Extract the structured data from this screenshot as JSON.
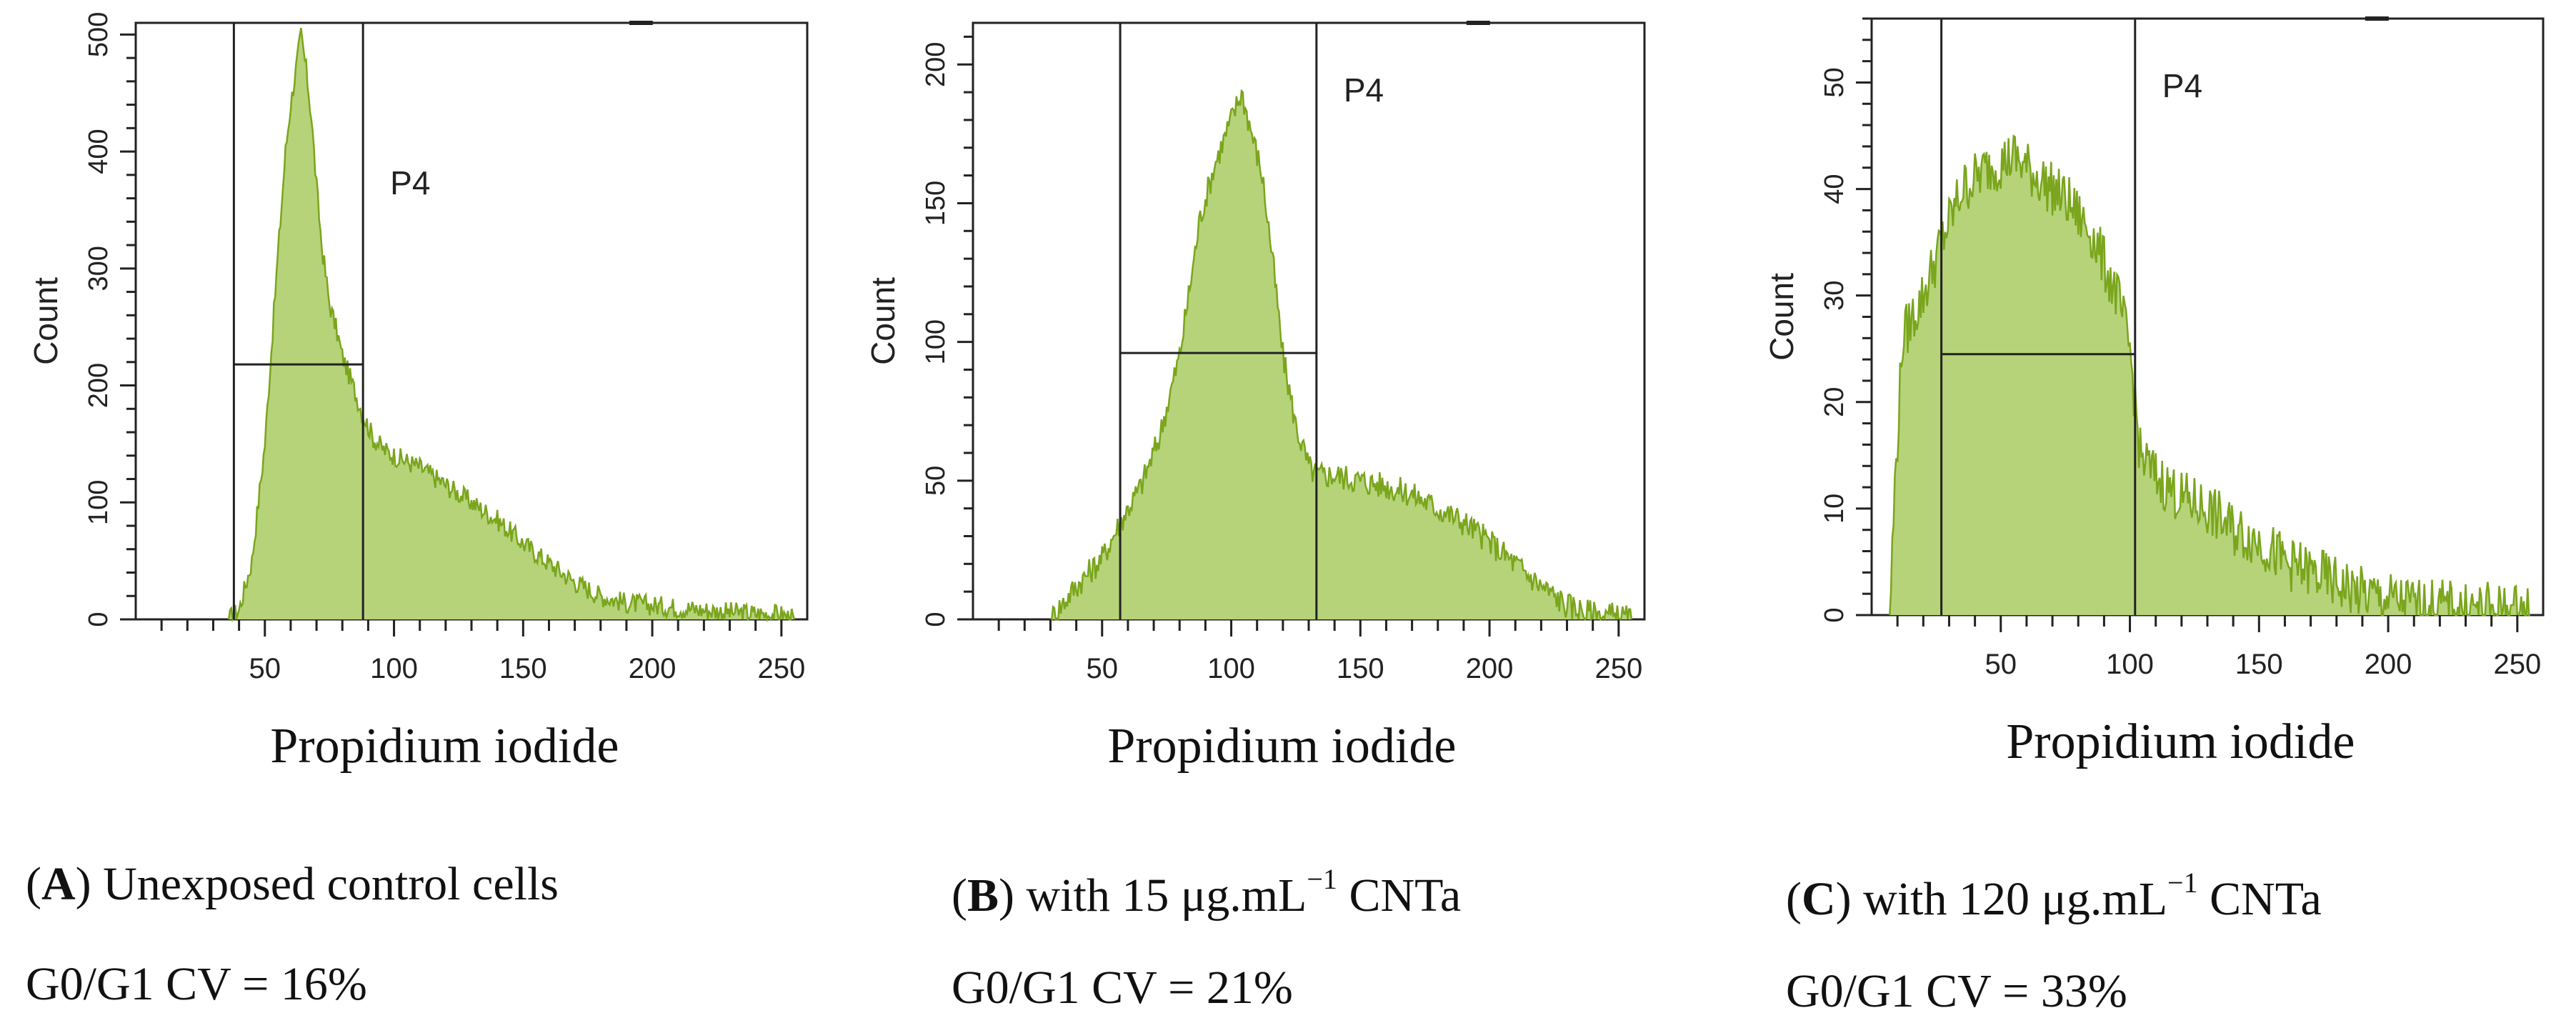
{
  "chart_data": [
    {
      "type": "histogram",
      "panel_letter": "A",
      "caption_text": " Unexposed control cells",
      "cv_text": "G0/G1 CV = 16%",
      "xlabel": "Propidium iodide",
      "ylabel": "Count",
      "gate_label": "P4",
      "xlim": [
        0,
        260
      ],
      "ylim": [
        0,
        510
      ],
      "xticks": [
        50,
        100,
        150,
        200,
        250
      ],
      "yticks": [
        0,
        100,
        200,
        300,
        400,
        500
      ],
      "gate": {
        "x_start": 38,
        "x_end": 88,
        "marker_y": 218
      },
      "fill_color": "#b6d37a",
      "line_color": "#7aa51c",
      "profile_x": [
        36,
        40,
        45,
        50,
        55,
        58,
        60,
        62,
        64,
        66,
        68,
        70,
        72,
        75,
        78,
        80,
        84,
        88,
        92,
        96,
        100,
        110,
        120,
        130,
        140,
        150,
        160,
        170,
        180,
        190,
        200,
        210,
        220,
        230,
        240,
        250,
        255
      ],
      "profile_y": [
        0,
        8,
        50,
        150,
        310,
        400,
        440,
        470,
        500,
        470,
        430,
        370,
        320,
        270,
        245,
        225,
        200,
        175,
        155,
        145,
        140,
        130,
        115,
        100,
        85,
        65,
        48,
        32,
        20,
        14,
        12,
        10,
        8,
        6,
        5,
        4,
        0
      ],
      "noise": 9
    },
    {
      "type": "histogram",
      "panel_letter": "B",
      "caption_text": " with 15 μg.mL",
      "caption_sup": "−1",
      "caption_tail": " CNTa",
      "cv_text": "G0/G1 CV = 21%",
      "xlabel": "Propidium iodide",
      "ylabel": "Count",
      "gate_label": "P4",
      "xlim": [
        0,
        260
      ],
      "ylim": [
        0,
        215
      ],
      "xticks": [
        50,
        100,
        150,
        200,
        250
      ],
      "yticks": [
        0,
        50,
        100,
        150,
        200
      ],
      "gate": {
        "x_start": 57,
        "x_end": 133,
        "marker_y": 96
      },
      "fill_color": "#b6d37a",
      "line_color": "#7aa51c",
      "profile_x": [
        30,
        40,
        50,
        57,
        65,
        72,
        80,
        88,
        94,
        100,
        104,
        108,
        112,
        116,
        120,
        125,
        130,
        133,
        140,
        150,
        160,
        170,
        180,
        190,
        200,
        210,
        220,
        230,
        240,
        250,
        255
      ],
      "profile_y": [
        0,
        12,
        22,
        35,
        48,
        65,
        95,
        145,
        165,
        180,
        190,
        175,
        160,
        130,
        95,
        70,
        55,
        52,
        52,
        50,
        48,
        45,
        40,
        35,
        28,
        20,
        12,
        5,
        2,
        1,
        0
      ],
      "noise": 5
    },
    {
      "type": "histogram",
      "panel_letter": "C",
      "caption_text": " with 120 μg.mL",
      "caption_sup": "−1",
      "caption_tail": " CNTa",
      "cv_text": "G0/G1 CV = 33%",
      "xlabel": "Propidium iodide",
      "ylabel": "Count",
      "gate_label": "P4",
      "xlim": [
        0,
        260
      ],
      "ylim": [
        0,
        56
      ],
      "xticks": [
        50,
        100,
        150,
        200,
        250
      ],
      "yticks": [
        0,
        10,
        20,
        30,
        40,
        50
      ],
      "gate": {
        "x_start": 27,
        "x_end": 102,
        "marker_y": 24.5
      },
      "fill_color": "#b6d37a",
      "line_color": "#7aa51c",
      "profile_x": [
        7,
        9,
        12,
        20,
        27,
        35,
        45,
        55,
        65,
        75,
        85,
        95,
        100,
        104,
        110,
        120,
        130,
        140,
        150,
        160,
        170,
        180,
        190,
        200,
        210,
        220,
        230,
        240,
        250,
        255
      ],
      "profile_y": [
        0,
        12,
        26,
        30,
        35,
        40,
        42,
        43,
        41,
        39,
        36,
        30,
        25,
        15,
        13,
        11,
        10,
        8,
        7,
        5,
        4,
        3,
        2,
        1.5,
        1,
        0.8,
        0.6,
        0.5,
        0.4,
        0
      ],
      "noise": 2.6
    }
  ]
}
